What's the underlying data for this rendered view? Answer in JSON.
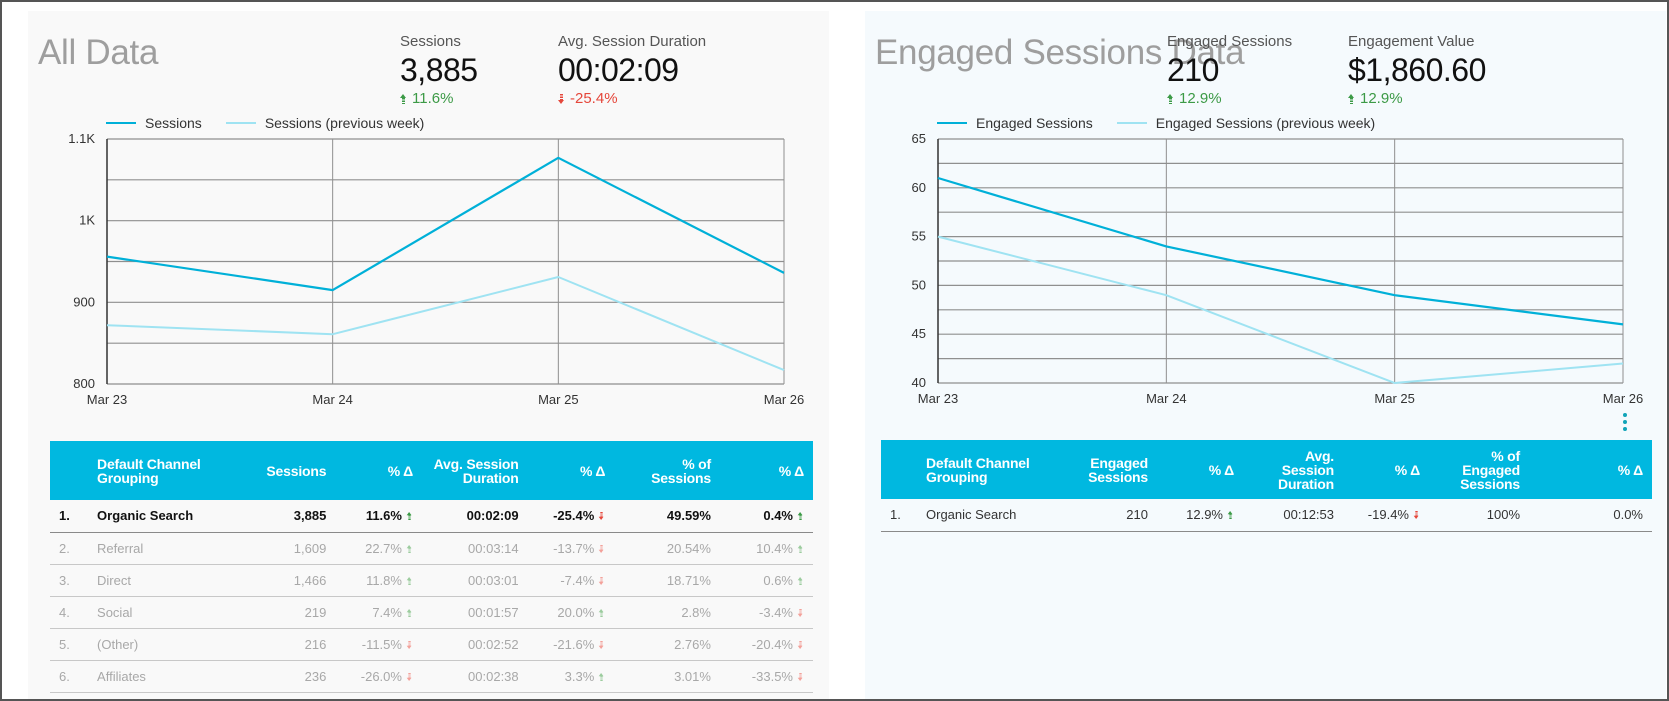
{
  "colors": {
    "primary_series": "#00b0d8",
    "previous_series": "#9fe3f2",
    "header_bg": "#00b8e0",
    "positive": "#3c9a46",
    "negative": "#e5473b"
  },
  "left": {
    "title": "All Data",
    "kpis": [
      {
        "label": "Sessions",
        "value": "3,885",
        "delta": "11.6%",
        "direction": "up"
      },
      {
        "label": "Avg. Session Duration",
        "value": "00:02:09",
        "delta": "-25.4%",
        "direction": "down"
      }
    ],
    "legend": [
      "Sessions",
      "Sessions (previous week)"
    ],
    "table": {
      "headers": [
        "",
        "Default Channel Grouping",
        "Sessions",
        "% Δ",
        "Avg. Session Duration",
        "% Δ",
        "% of Sessions",
        "% Δ"
      ],
      "rows": [
        {
          "rank": "1.",
          "channel": "Organic Search",
          "sessions": "3,885",
          "sessions_delta": "11.6%",
          "sessions_dir": "up",
          "duration": "00:02:09",
          "duration_delta": "-25.4%",
          "duration_dir": "down",
          "pct": "49.59%",
          "pct_delta": "0.4%",
          "pct_dir": "up"
        },
        {
          "rank": "2.",
          "channel": "Referral",
          "sessions": "1,609",
          "sessions_delta": "22.7%",
          "sessions_dir": "up",
          "duration": "00:03:14",
          "duration_delta": "-13.7%",
          "duration_dir": "down",
          "pct": "20.54%",
          "pct_delta": "10.4%",
          "pct_dir": "up"
        },
        {
          "rank": "3.",
          "channel": "Direct",
          "sessions": "1,466",
          "sessions_delta": "11.8%",
          "sessions_dir": "up",
          "duration": "00:03:01",
          "duration_delta": "-7.4%",
          "duration_dir": "down",
          "pct": "18.71%",
          "pct_delta": "0.6%",
          "pct_dir": "up"
        },
        {
          "rank": "4.",
          "channel": "Social",
          "sessions": "219",
          "sessions_delta": "7.4%",
          "sessions_dir": "up",
          "duration": "00:01:57",
          "duration_delta": "20.0%",
          "duration_dir": "up",
          "pct": "2.8%",
          "pct_delta": "-3.4%",
          "pct_dir": "down"
        },
        {
          "rank": "5.",
          "channel": "(Other)",
          "sessions": "216",
          "sessions_delta": "-11.5%",
          "sessions_dir": "down",
          "duration": "00:02:52",
          "duration_delta": "-21.6%",
          "duration_dir": "down",
          "pct": "2.76%",
          "pct_delta": "-20.4%",
          "pct_dir": "down"
        },
        {
          "rank": "6.",
          "channel": "Affiliates",
          "sessions": "236",
          "sessions_delta": "-26.0%",
          "sessions_dir": "down",
          "duration": "00:02:38",
          "duration_delta": "3.3%",
          "duration_dir": "up",
          "pct": "3.01%",
          "pct_delta": "-33.5%",
          "pct_dir": "down"
        }
      ]
    }
  },
  "right": {
    "title": "Engaged Sessions Data",
    "kpis": [
      {
        "label": "Engaged Sessions",
        "value": "210",
        "delta": "12.9%",
        "direction": "up"
      },
      {
        "label": "Engagement Value",
        "value": "$1,860.60",
        "delta": "12.9%",
        "direction": "up"
      }
    ],
    "legend": [
      "Engaged Sessions",
      "Engaged Sessions (previous week)"
    ],
    "menu_icon": "more-vert-icon",
    "table": {
      "headers": [
        "",
        "Default Channel Grouping",
        "Engaged Sessions",
        "% Δ",
        "Avg. Session Duration",
        "% Δ",
        "% of Engaged Sessions",
        "% Δ"
      ],
      "rows": [
        {
          "rank": "1.",
          "channel": "Organic Search",
          "sessions": "210",
          "sessions_delta": "12.9%",
          "sessions_dir": "up",
          "duration": "00:12:53",
          "duration_delta": "-19.4%",
          "duration_dir": "down",
          "pct": "100%",
          "pct_delta": "0.0%",
          "pct_dir": "none"
        }
      ]
    }
  },
  "chart_data": [
    {
      "type": "line",
      "title": "",
      "categories": [
        "Mar 23",
        "Mar 24",
        "Mar 25",
        "Mar 26"
      ],
      "series": [
        {
          "name": "Sessions",
          "values": [
            956,
            915,
            1077,
            936
          ]
        },
        {
          "name": "Sessions (previous week)",
          "values": [
            872,
            861,
            931,
            817
          ]
        }
      ],
      "ylim": [
        800,
        1100
      ],
      "yticks": [
        800,
        900,
        1000,
        1100
      ],
      "ytick_labels": [
        "800",
        "900",
        "1K",
        "1.1K"
      ],
      "grid_step": 50,
      "grid": true,
      "legend": "top-left",
      "xlabel": "",
      "ylabel": ""
    },
    {
      "type": "line",
      "title": "",
      "categories": [
        "Mar 23",
        "Mar 24",
        "Mar 25",
        "Mar 26"
      ],
      "series": [
        {
          "name": "Engaged Sessions",
          "values": [
            61,
            54,
            49,
            46
          ]
        },
        {
          "name": "Engaged Sessions (previous week)",
          "values": [
            55,
            49,
            40,
            42
          ]
        }
      ],
      "ylim": [
        40,
        65
      ],
      "yticks": [
        40,
        45,
        50,
        55,
        60,
        65
      ],
      "ytick_labels": [
        "40",
        "45",
        "50",
        "55",
        "60",
        "65"
      ],
      "grid_step": 2.5,
      "grid": true,
      "legend": "top-left",
      "xlabel": "",
      "ylabel": ""
    }
  ]
}
